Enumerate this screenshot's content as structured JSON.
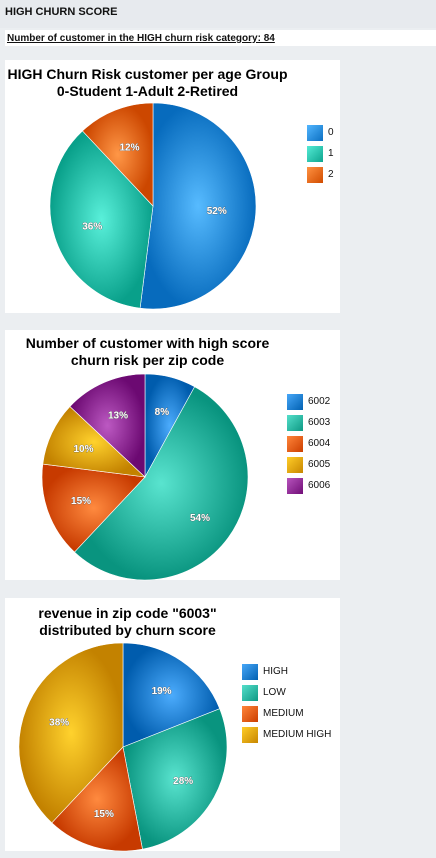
{
  "page": {
    "title": "HIGH CHURN SCORE",
    "subtitle": "Number of customer in the HIGH churn risk category: 84"
  },
  "colors": {
    "blue": "#1f7fd0",
    "teal": "#2cb7a2",
    "orange": "#ea5d12",
    "gold": "#e6a500",
    "purple": "#8f2c95"
  },
  "chart_data": [
    {
      "type": "pie",
      "title_lines": [
        "HIGH Churn Risk customer per age Group",
        "0-Student 1-Adult 2-Retired"
      ],
      "legend_position": "right",
      "series": [
        {
          "name": "0",
          "value": 52,
          "label": "52%",
          "color": "#2a8ee0"
        },
        {
          "name": "1",
          "value": 36,
          "label": "36%",
          "color": "#2cc3ad"
        },
        {
          "name": "2",
          "value": 12,
          "label": "12%",
          "color": "#ef6a1a"
        }
      ]
    },
    {
      "type": "pie",
      "title_lines": [
        "Number of customer with high score",
        "churn risk per zip code"
      ],
      "legend_position": "right",
      "series": [
        {
          "name": "6002",
          "value": 8,
          "label": "8%",
          "color": "#1f7fd0"
        },
        {
          "name": "6003",
          "value": 54,
          "label": "54%",
          "color": "#2cb7a2"
        },
        {
          "name": "6004",
          "value": 15,
          "label": "15%",
          "color": "#ea5d12"
        },
        {
          "name": "6005",
          "value": 10,
          "label": "10%",
          "color": "#e6a500"
        },
        {
          "name": "6006",
          "value": 13,
          "label": "13%",
          "color": "#8f2c95"
        }
      ]
    },
    {
      "type": "pie",
      "title_lines": [
        "revenue in zip code \"6003\"",
        "distributed by churn score"
      ],
      "legend_position": "right",
      "series": [
        {
          "name": "HIGH",
          "value": 19,
          "label": "19%",
          "color": "#1f7fd0"
        },
        {
          "name": "LOW",
          "value": 28,
          "label": "28%",
          "color": "#2cb7a2"
        },
        {
          "name": "MEDIUM",
          "value": 15,
          "label": "15%",
          "color": "#ea5d12"
        },
        {
          "name": "MEDIUM HIGH",
          "value": 38,
          "label": "38%",
          "color": "#e6a500"
        }
      ]
    }
  ]
}
